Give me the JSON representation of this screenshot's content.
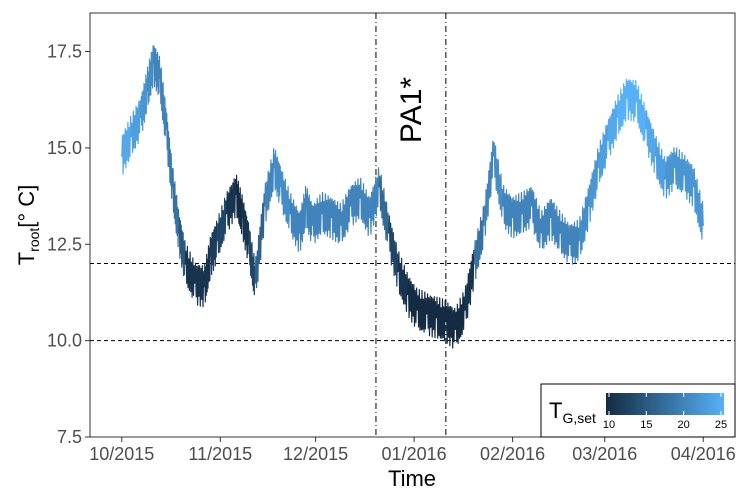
{
  "chart_data": {
    "type": "line",
    "xlabel": "Time",
    "ylabel_main": "T",
    "ylabel_sub": "root",
    "ylabel_unit": "[° C]",
    "x_ticks": [
      "10/2015",
      "11/2015",
      "12/2015",
      "01/2016",
      "02/2016",
      "03/2016",
      "04/2016"
    ],
    "y_ticks": [
      "7.5",
      "10.0",
      "12.5",
      "15.0",
      "17.5"
    ],
    "ylim": [
      7.5,
      18.5
    ],
    "xlim_days": [
      -10,
      193
    ],
    "hlines": [
      10.0,
      12.0
    ],
    "vlines": [
      "2015-12-20",
      "2016-01-11"
    ],
    "annotation": "PA1*",
    "legend": {
      "title_main": "T",
      "title_sub": "G,set",
      "ticks": [
        "10",
        "15",
        "20",
        "25"
      ],
      "range": [
        10,
        25
      ],
      "color_low": "#132b43",
      "color_high": "#56b1f7",
      "position": "bottom-right"
    },
    "series": [
      {
        "x_days": [
          0,
          3,
          6,
          8,
          10,
          12,
          14,
          16,
          18,
          20,
          23,
          26,
          28,
          30,
          33,
          36,
          38,
          40,
          42,
          45,
          48,
          50,
          53,
          56,
          58,
          60,
          63,
          66,
          69,
          72,
          75,
          78,
          81,
          84,
          87,
          90,
          93,
          96,
          99,
          102,
          105,
          108,
          111,
          114,
          117,
          120,
          123,
          126,
          129,
          132,
          135,
          138,
          141,
          144,
          147,
          150,
          153,
          156,
          159,
          162,
          165,
          168,
          171,
          174,
          177,
          180,
          183
        ],
        "y": [
          14.8,
          15.3,
          15.8,
          16.5,
          17.2,
          16.8,
          15.5,
          14.0,
          12.8,
          12.0,
          11.5,
          11.4,
          12.2,
          12.6,
          13.3,
          13.8,
          13.2,
          12.5,
          11.5,
          13.5,
          14.5,
          14.0,
          13.3,
          12.8,
          13.5,
          13.0,
          13.3,
          13.2,
          13.0,
          13.5,
          13.7,
          13.2,
          14.0,
          12.8,
          11.8,
          11.2,
          10.8,
          10.7,
          10.6,
          10.5,
          10.3,
          10.8,
          12.0,
          13.0,
          14.8,
          13.5,
          13.2,
          13.3,
          13.5,
          12.8,
          13.2,
          12.8,
          12.5,
          12.6,
          13.5,
          14.5,
          15.2,
          15.8,
          16.3,
          16.2,
          15.5,
          14.8,
          14.2,
          14.5,
          14.3,
          14.0,
          13.0
        ],
        "t_g_set": [
          24,
          23,
          22,
          21,
          20,
          20,
          19,
          18,
          15,
          11,
          11,
          11,
          12,
          13,
          11,
          10,
          11,
          13,
          16,
          20,
          21,
          21,
          20,
          20,
          20,
          20,
          20,
          20,
          20,
          20,
          20,
          20,
          17,
          13,
          11,
          10,
          10,
          10,
          10,
          10,
          10,
          11,
          18,
          20,
          21,
          20,
          20,
          20,
          20,
          20,
          20,
          20,
          20,
          21,
          22,
          23,
          24,
          25,
          25,
          25,
          24,
          23,
          22,
          22,
          22,
          22,
          22
        ]
      }
    ]
  }
}
